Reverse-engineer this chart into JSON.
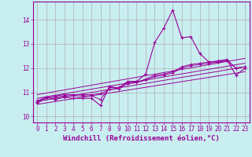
{
  "xlabel": "Windchill (Refroidissement éolien,°C)",
  "xlim": [
    -0.5,
    23.5
  ],
  "ylim": [
    9.75,
    14.75
  ],
  "xticks": [
    0,
    1,
    2,
    3,
    4,
    5,
    6,
    7,
    8,
    9,
    10,
    11,
    12,
    13,
    14,
    15,
    16,
    17,
    18,
    19,
    20,
    21,
    22,
    23
  ],
  "yticks": [
    10,
    11,
    12,
    13,
    14
  ],
  "background_color": "#c8eef0",
  "grid_color": "#b0b0b0",
  "line_color": "#990099",
  "data_x": [
    0,
    1,
    2,
    3,
    4,
    5,
    6,
    7,
    8,
    9,
    10,
    11,
    12,
    13,
    14,
    15,
    16,
    17,
    18,
    19,
    20,
    21,
    22,
    23
  ],
  "data_y1": [
    10.6,
    10.8,
    10.7,
    10.8,
    10.75,
    10.75,
    10.75,
    10.45,
    11.25,
    11.15,
    11.45,
    11.45,
    11.75,
    13.05,
    13.65,
    14.4,
    13.25,
    13.3,
    12.6,
    12.25,
    12.25,
    12.35,
    11.7,
    12.0
  ],
  "data_y2": [
    10.55,
    10.75,
    10.8,
    10.85,
    10.85,
    10.85,
    10.85,
    10.7,
    11.2,
    11.2,
    11.4,
    11.4,
    11.55,
    11.7,
    11.75,
    11.85,
    12.05,
    12.15,
    12.2,
    12.25,
    12.3,
    12.35,
    12.0,
    12.05
  ],
  "data_y3": [
    10.65,
    10.8,
    10.85,
    10.9,
    10.9,
    10.9,
    10.9,
    10.95,
    11.1,
    11.15,
    11.35,
    11.4,
    11.5,
    11.65,
    11.7,
    11.8,
    12.0,
    12.1,
    12.15,
    12.2,
    12.25,
    12.3,
    12.0,
    12.05
  ],
  "reg_lines": [
    {
      "x": [
        0,
        23
      ],
      "y": [
        10.5,
        11.85
      ]
    },
    {
      "x": [
        0,
        23
      ],
      "y": [
        10.62,
        12.05
      ]
    },
    {
      "x": [
        0,
        23
      ],
      "y": [
        10.75,
        12.2
      ]
    },
    {
      "x": [
        0,
        23
      ],
      "y": [
        10.9,
        12.4
      ]
    }
  ],
  "tick_fontsize": 5.5,
  "label_fontsize": 6.5
}
